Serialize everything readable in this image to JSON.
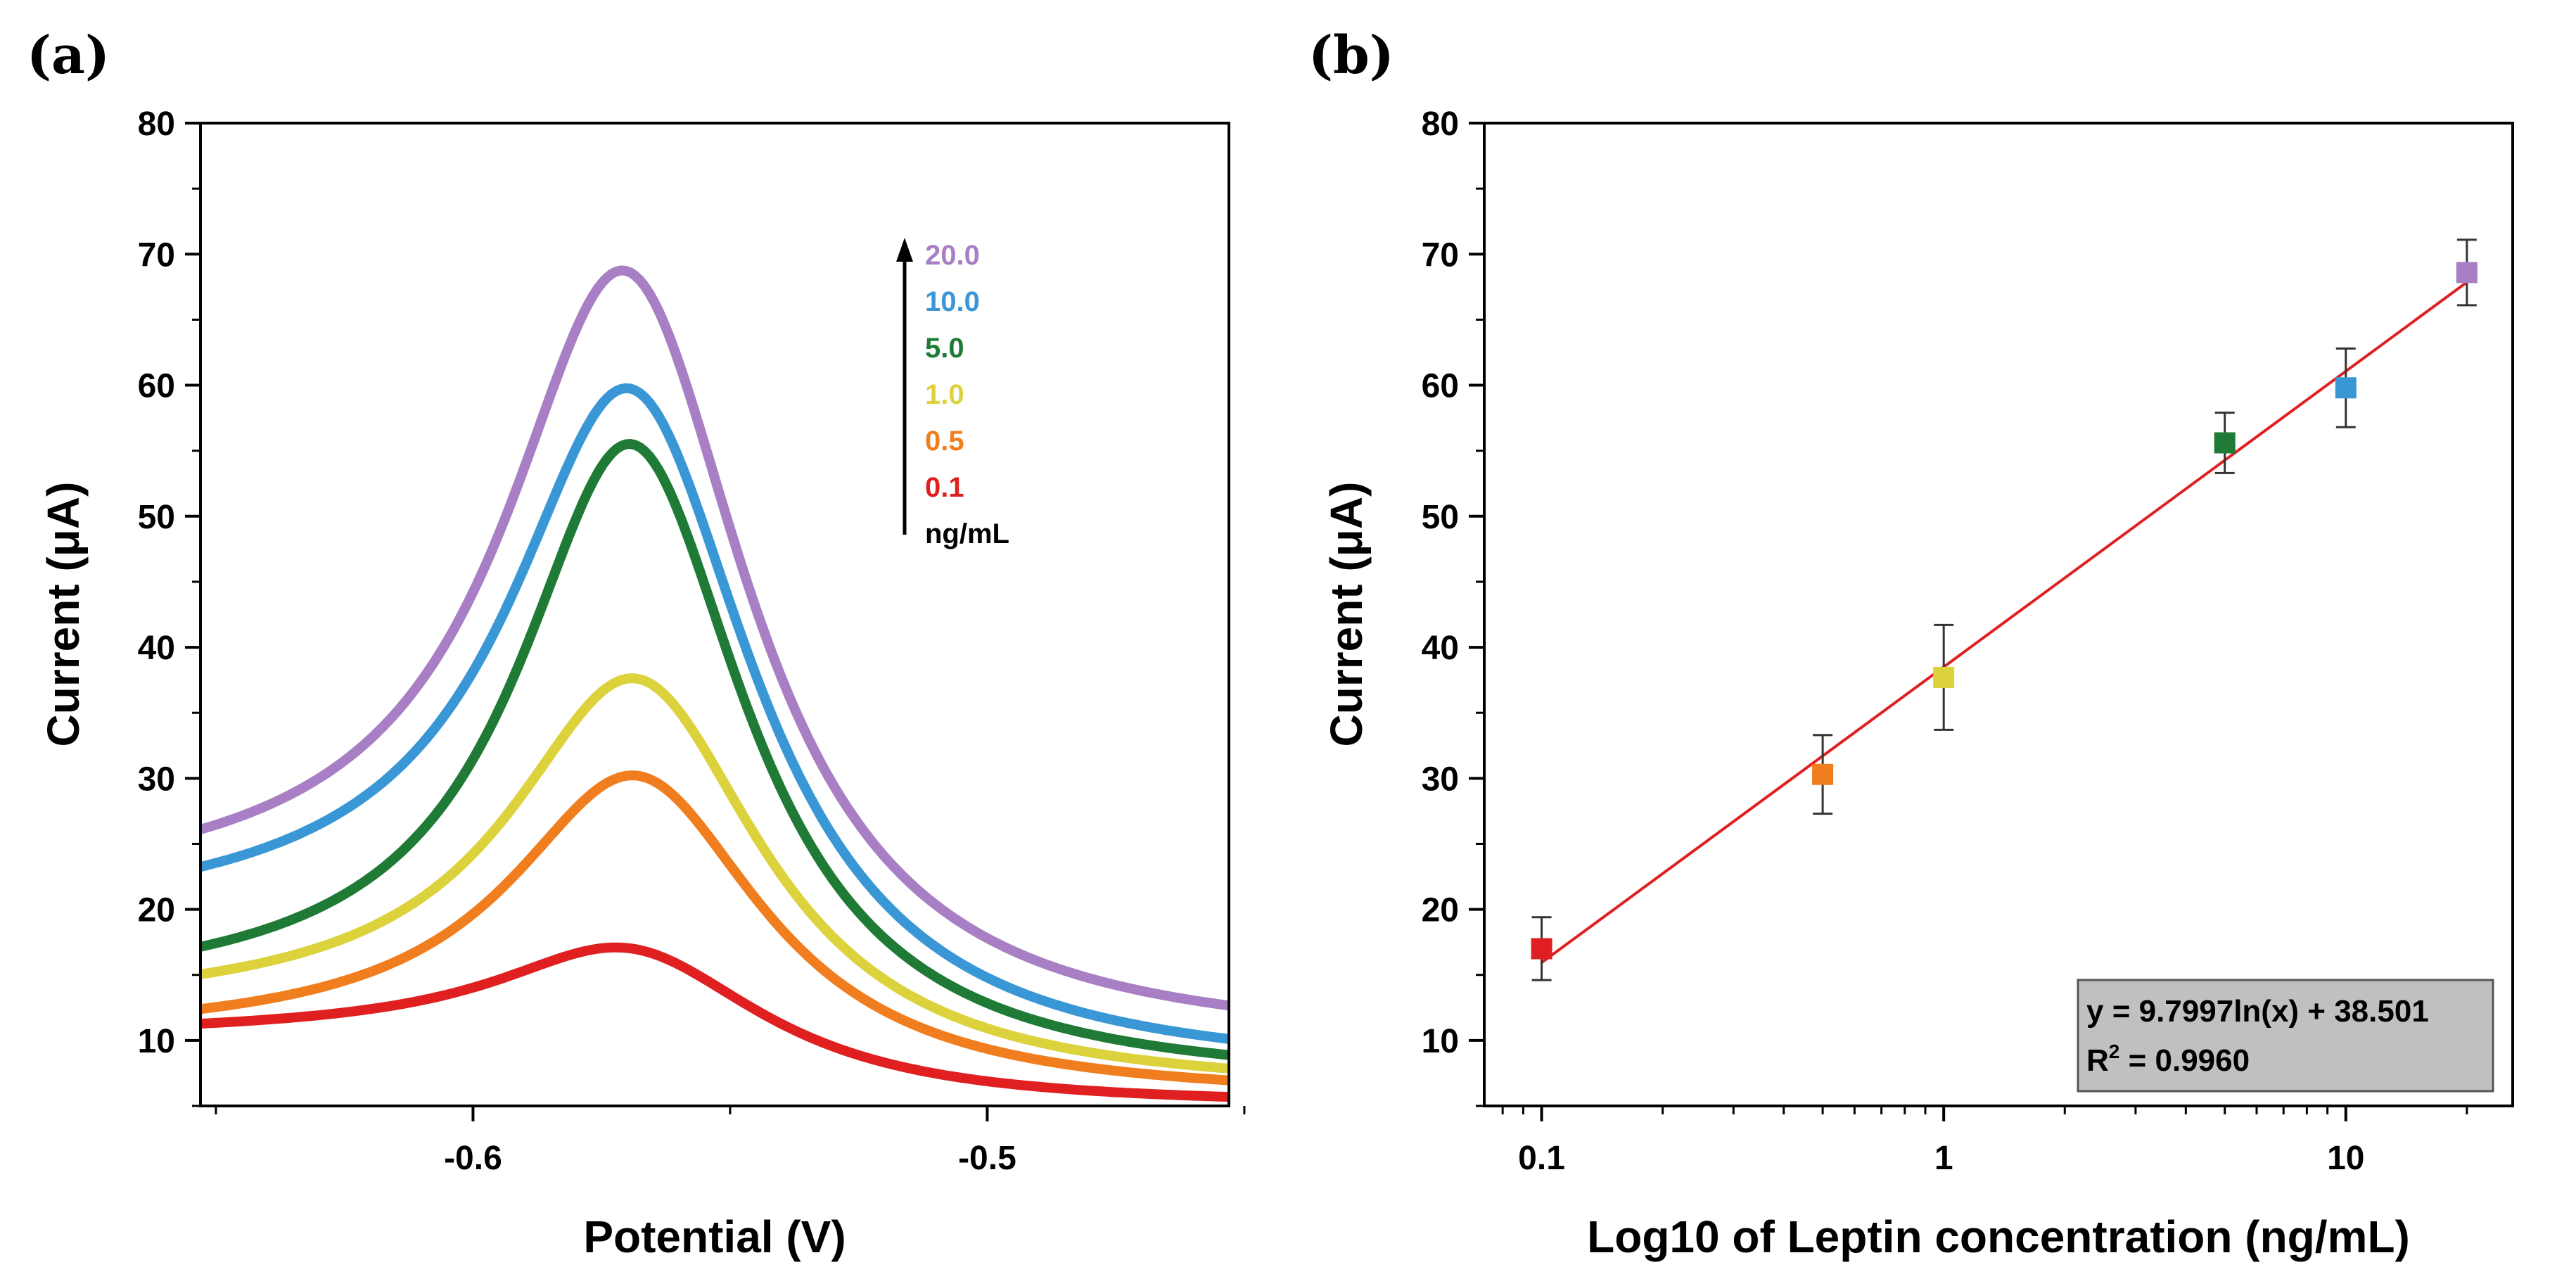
{
  "chart_data": [
    {
      "panel": "(a)",
      "type": "line",
      "xlabel": "Potential (V)",
      "ylabel": "Current (μA)",
      "xlim": [
        -0.653,
        -0.453
      ],
      "ylim": [
        5,
        80
      ],
      "xticks": [
        -0.6,
        -0.5
      ],
      "yticks": [
        10,
        20,
        30,
        40,
        50,
        60,
        70,
        80
      ],
      "legend_unit": "ng/mL",
      "legend_position": "top-right",
      "series": [
        {
          "name": "20.0",
          "color": "#a87fc4",
          "peak_x": -0.57,
          "peak_y": 68.7,
          "width": 0.029,
          "x": [
            -0.653,
            -0.453
          ],
          "baseline": [
            20.5,
            9.5
          ]
        },
        {
          "name": "10.0",
          "color": "#3a97d6",
          "peak_x": -0.569,
          "peak_y": 59.7,
          "width": 0.029,
          "x": [
            -0.653,
            -0.453
          ],
          "baseline": [
            18.5,
            7.3
          ]
        },
        {
          "name": "5.0",
          "color": "#1e7a35",
          "peak_x": -0.569,
          "peak_y": 55.5,
          "width": 0.027,
          "x": [
            -0.653,
            -0.453
          ],
          "baseline": [
            13.0,
            6.5
          ]
        },
        {
          "name": "1.0",
          "color": "#dcd23c",
          "peak_x": -0.568,
          "peak_y": 37.6,
          "width": 0.03,
          "x": [
            -0.653,
            -0.453
          ],
          "baseline": [
            12.0,
            6.0
          ]
        },
        {
          "name": "0.5",
          "color": "#f07d1e",
          "peak_x": -0.568,
          "peak_y": 30.2,
          "width": 0.03,
          "x": [
            -0.653,
            -0.453
          ],
          "baseline": [
            10.0,
            5.5
          ]
        },
        {
          "name": "0.1",
          "color": "#e02020",
          "peak_x": -0.569,
          "peak_y": 17.0,
          "width": 0.032,
          "x": [
            -0.653,
            -0.453
          ],
          "baseline": [
            10.2,
            5.0
          ]
        }
      ]
    },
    {
      "panel": "(b)",
      "type": "scatter",
      "xlabel": "Log10 of Leptin concentration (ng/mL)",
      "ylabel": "Current (μA)",
      "xscale": "log",
      "xlim": [
        0.072,
        26
      ],
      "ylim": [
        5,
        80
      ],
      "xticks": [
        0.1,
        1,
        10
      ],
      "xtick_labels": [
        "0.1",
        "1",
        "10"
      ],
      "yticks": [
        10,
        20,
        30,
        40,
        50,
        60,
        70,
        80
      ],
      "points": [
        {
          "x": 0.1,
          "y": 17.0,
          "err": 2.4,
          "color": "#e02020"
        },
        {
          "x": 0.5,
          "y": 30.3,
          "err": 3.0,
          "color": "#f07d1e"
        },
        {
          "x": 1.0,
          "y": 37.7,
          "err": 4.0,
          "color": "#dcd23c"
        },
        {
          "x": 5.0,
          "y": 55.6,
          "err": 2.3,
          "color": "#1e7a35"
        },
        {
          "x": 10.0,
          "y": 59.8,
          "err": 3.0,
          "color": "#3a97d6"
        },
        {
          "x": 20.0,
          "y": 68.6,
          "err": 2.5,
          "color": "#a87fc4"
        }
      ],
      "fit": {
        "slope": 9.7997,
        "intercept": 38.501,
        "x_range": [
          0.1,
          20
        ],
        "color": "#e02020",
        "equation": "y = 9.7997ln(x) + 38.501",
        "r2_label": "R",
        "r2_sup": "2",
        "r2_value": " = 0.9960",
        "legend_position": "bottom-right"
      }
    }
  ]
}
